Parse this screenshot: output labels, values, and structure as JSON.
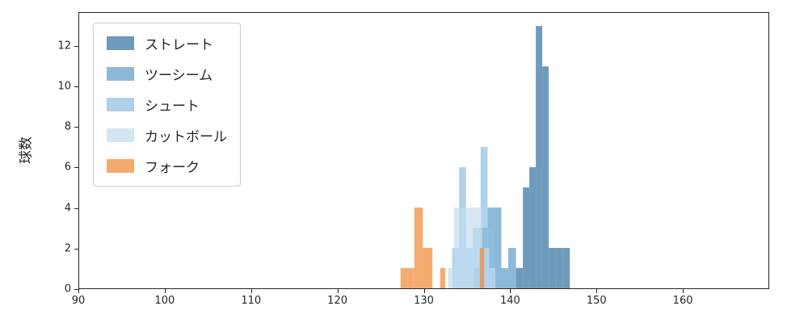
{
  "figure": {
    "background": "#ffffff"
  },
  "chart_data": {
    "type": "histogram",
    "title": "",
    "xlabel": "",
    "ylabel": "球数",
    "xlim": [
      90,
      170
    ],
    "ylim": [
      0,
      13.65
    ],
    "xticks": [
      90,
      100,
      110,
      120,
      130,
      140,
      150,
      160
    ],
    "yticks": [
      0,
      2,
      4,
      6,
      8,
      10,
      12
    ],
    "grid": false,
    "legend_position": "upper left",
    "bar_alpha": 0.7,
    "series": [
      {
        "name": "ストレート",
        "key": "straight",
        "color": "#31709F",
        "bars": [
          {
            "x": 140.7,
            "w": 0.8,
            "h": 1
          },
          {
            "x": 141.5,
            "w": 0.75,
            "h": 5
          },
          {
            "x": 142.25,
            "w": 0.75,
            "h": 6
          },
          {
            "x": 143.0,
            "w": 0.75,
            "h": 13
          },
          {
            "x": 143.75,
            "w": 0.75,
            "h": 11
          },
          {
            "x": 144.5,
            "w": 0.85,
            "h": 2
          },
          {
            "x": 145.35,
            "w": 0.8,
            "h": 2
          },
          {
            "x": 146.15,
            "w": 0.8,
            "h": 2
          }
        ]
      },
      {
        "name": "ツーシーム",
        "key": "two-seam",
        "color": "#5D9BC9",
        "bars": [
          {
            "x": 135.8,
            "w": 0.8,
            "h": 1
          },
          {
            "x": 136.6,
            "w": 0.8,
            "h": 3
          },
          {
            "x": 137.4,
            "w": 0.8,
            "h": 4
          },
          {
            "x": 138.2,
            "w": 0.8,
            "h": 4
          },
          {
            "x": 139.0,
            "w": 0.8,
            "h": 1
          },
          {
            "x": 139.8,
            "w": 0.9,
            "h": 2
          }
        ]
      },
      {
        "name": "シュート",
        "key": "shuuto",
        "color": "#8FBFE0",
        "bars": [
          {
            "x": 133.3,
            "w": 0.8,
            "h": 2
          },
          {
            "x": 134.1,
            "w": 0.8,
            "h": 6
          },
          {
            "x": 134.9,
            "w": 0.8,
            "h": 2
          },
          {
            "x": 135.7,
            "w": 0.9,
            "h": 3
          },
          {
            "x": 136.6,
            "w": 0.8,
            "h": 7
          },
          {
            "x": 137.4,
            "w": 0.8,
            "h": 3
          }
        ]
      },
      {
        "name": "カットボール",
        "key": "cut-ball",
        "color": "#C3DCEE",
        "bars": [
          {
            "x": 132.8,
            "w": 0.7,
            "h": 1
          },
          {
            "x": 133.5,
            "w": 0.8,
            "h": 4
          },
          {
            "x": 134.3,
            "w": 0.8,
            "h": 4
          },
          {
            "x": 135.1,
            "w": 0.8,
            "h": 4
          },
          {
            "x": 135.9,
            "w": 0.9,
            "h": 4
          },
          {
            "x": 136.8,
            "w": 0.8,
            "h": 2
          },
          {
            "x": 137.6,
            "w": 0.7,
            "h": 1
          }
        ]
      },
      {
        "name": "フォーク",
        "key": "fork",
        "color": "#EF8733",
        "bars": [
          {
            "x": 127.3,
            "w": 0.8,
            "h": 1
          },
          {
            "x": 128.1,
            "w": 0.8,
            "h": 1
          },
          {
            "x": 128.9,
            "w": 1.0,
            "h": 4
          },
          {
            "x": 129.9,
            "w": 1.1,
            "h": 2
          },
          {
            "x": 131.9,
            "w": 0.6,
            "h": 1
          },
          {
            "x": 136.5,
            "w": 0.5,
            "h": 2
          }
        ]
      }
    ]
  }
}
